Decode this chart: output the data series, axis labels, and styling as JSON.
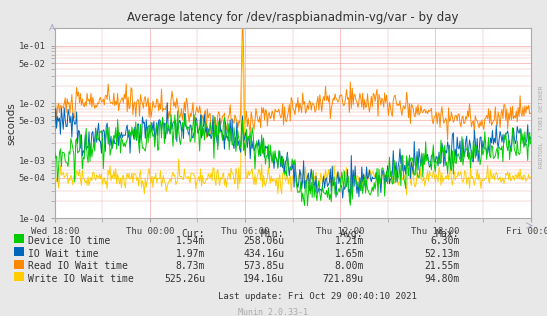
{
  "title": "Average latency for /dev/raspbianadmin-vg/var - by day",
  "ylabel": "seconds",
  "background_color": "#e8e8e8",
  "plot_bg_color": "#ffffff",
  "grid_color": "#f5aaaa",
  "title_color": "#333333",
  "x_ticks_labels": [
    "Wed 18:00",
    "Thu 00:00",
    "Thu 06:00",
    "Thu 12:00",
    "Thu 18:00",
    "Fri 00:00"
  ],
  "right_label": "RRDTOOL / TOBI OETIKER",
  "legend_items": [
    {
      "label": "Device IO time",
      "color": "#00cc00"
    },
    {
      "label": "IO Wait time",
      "color": "#0066bb"
    },
    {
      "label": "Read IO Wait time",
      "color": "#ff8800"
    },
    {
      "label": "Write IO Wait time",
      "color": "#ffcc00"
    }
  ],
  "legend_stats": {
    "headers": [
      "Cur:",
      "Min:",
      "Avg:",
      "Max:"
    ],
    "rows": [
      [
        "1.54m",
        "258.06u",
        "1.21m",
        "6.30m"
      ],
      [
        "1.97m",
        "434.16u",
        "1.65m",
        "52.13m"
      ],
      [
        "8.73m",
        "573.85u",
        "8.00m",
        "21.55m"
      ],
      [
        "525.26u",
        "194.16u",
        "721.89u",
        "94.80m"
      ]
    ]
  },
  "last_update": "Last update: Fri Oct 29 00:40:10 2021",
  "munin_version": "Munin 2.0.33-1",
  "ytick_vals": [
    0.0001,
    0.0005,
    0.001,
    0.005,
    0.01,
    0.05,
    0.1
  ],
  "ytick_labels": [
    "1e-04",
    "5e-04",
    "1e-03",
    "5e-03",
    "1e-02",
    "5e-02",
    "1e-01"
  ]
}
